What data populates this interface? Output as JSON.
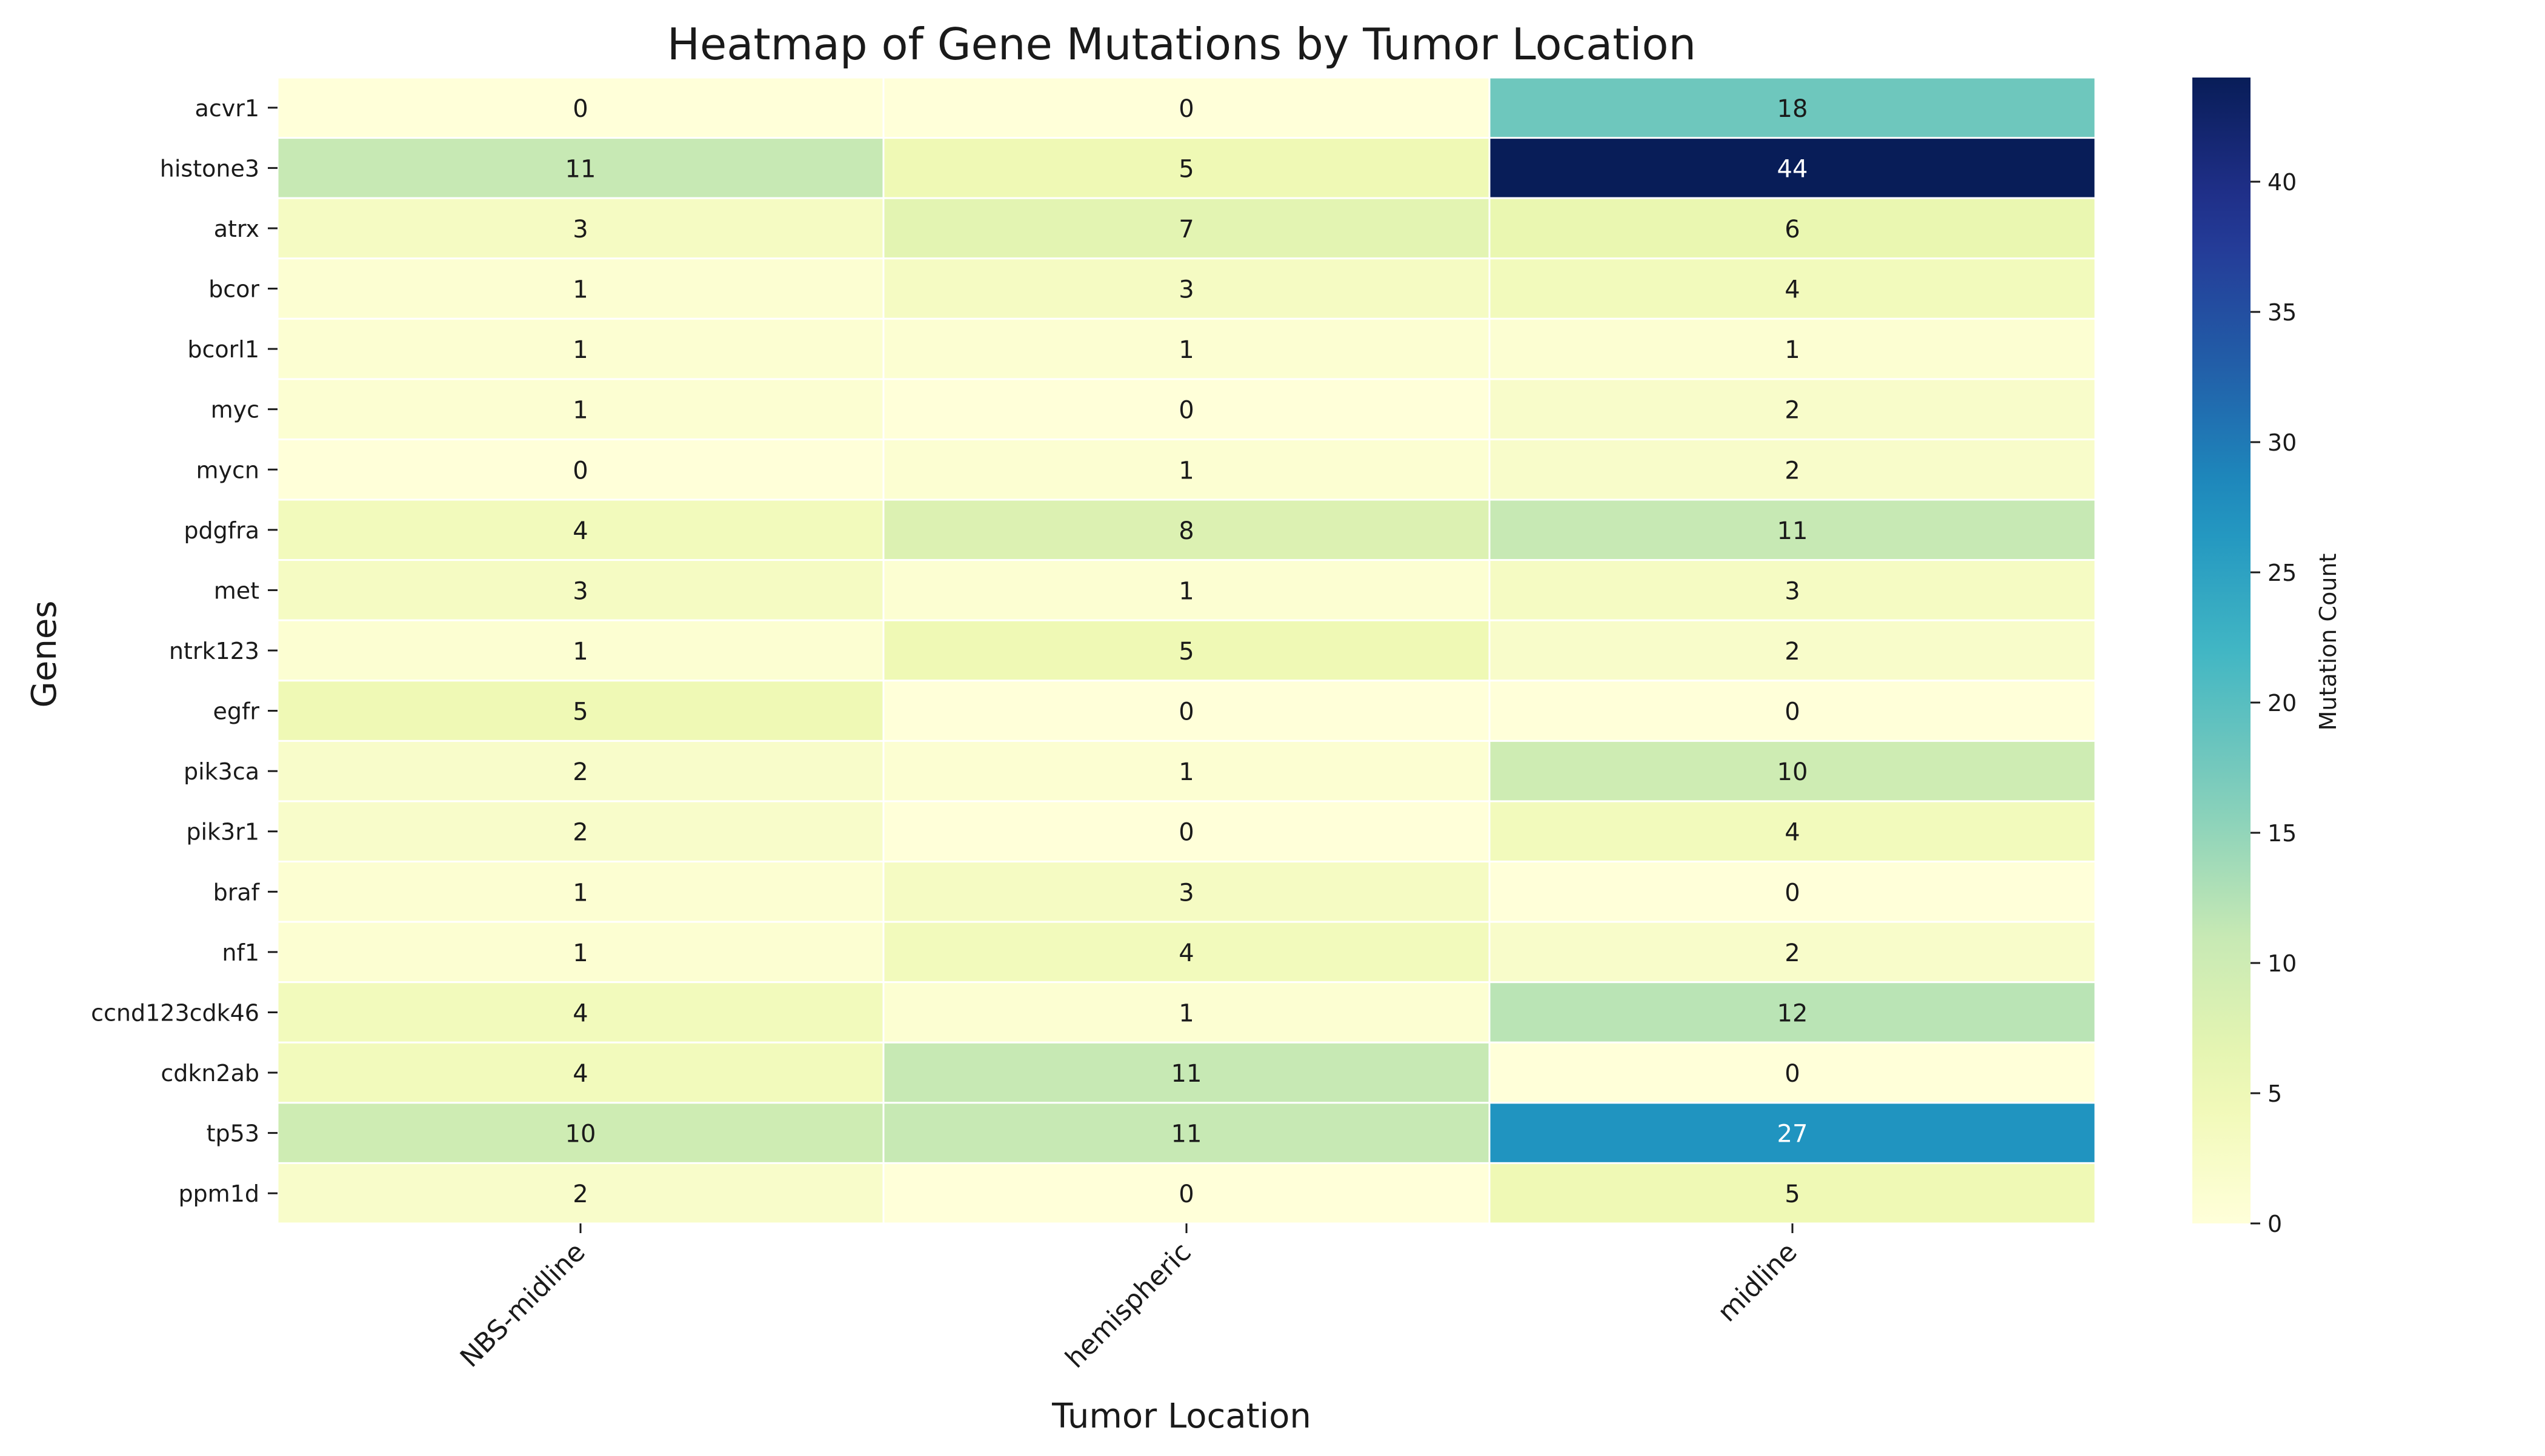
{
  "chart_data": {
    "type": "heatmap",
    "title": "Heatmap of Gene Mutations by Tumor Location",
    "xlabel": "Tumor Location",
    "ylabel": "Genes",
    "colorbar_label": "Mutation Count",
    "colorbar_ticks": [
      0,
      5,
      10,
      15,
      20,
      25,
      30,
      35,
      40
    ],
    "colorbar_range": [
      0,
      44
    ],
    "colormap": "YlGnBu",
    "columns": [
      "NBS-midline",
      "hemispheric",
      "midline"
    ],
    "rows": [
      "acvr1",
      "histone3",
      "atrx",
      "bcor",
      "bcorl1",
      "myc",
      "mycn",
      "pdgfra",
      "met",
      "ntrk123",
      "egfr",
      "pik3ca",
      "pik3r1",
      "braf",
      "nf1",
      "ccnd123cdk46",
      "cdkn2ab",
      "tp53",
      "ppm1d"
    ],
    "values": [
      [
        0,
        0,
        18
      ],
      [
        11,
        5,
        44
      ],
      [
        3,
        7,
        6
      ],
      [
        1,
        3,
        4
      ],
      [
        1,
        1,
        1
      ],
      [
        1,
        0,
        2
      ],
      [
        0,
        1,
        2
      ],
      [
        4,
        8,
        11
      ],
      [
        3,
        1,
        3
      ],
      [
        1,
        5,
        2
      ],
      [
        5,
        0,
        0
      ],
      [
        2,
        1,
        10
      ],
      [
        2,
        0,
        4
      ],
      [
        1,
        3,
        0
      ],
      [
        1,
        4,
        2
      ],
      [
        4,
        1,
        12
      ],
      [
        4,
        11,
        0
      ],
      [
        10,
        11,
        27
      ],
      [
        2,
        0,
        5
      ]
    ]
  }
}
